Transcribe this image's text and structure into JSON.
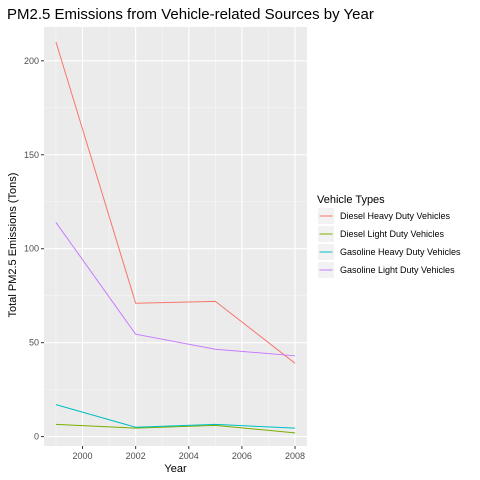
{
  "chart_data": {
    "type": "line",
    "title": "PM2.5 Emissions from Vehicle-related Sources by Year",
    "xlabel": "Year",
    "ylabel": "Total PM2.5 Emissions (Tons)",
    "x": [
      1999,
      2002,
      2005,
      2008
    ],
    "xlim": [
      1998.55,
      2008.45
    ],
    "ylim": [
      -5,
      218
    ],
    "x_ticks": [
      2000,
      2002,
      2004,
      2006,
      2008
    ],
    "y_ticks": [
      0,
      50,
      100,
      150,
      200
    ],
    "x_tick_labels": [
      "2000",
      "2002",
      "2004",
      "2006",
      "2008"
    ],
    "y_tick_labels": [
      "0",
      "50",
      "100",
      "150",
      "200"
    ],
    "grid": true,
    "background": "#ebebeb",
    "legend": {
      "title": "Vehicle Types",
      "position": "right"
    },
    "series": [
      {
        "name": "Diesel Heavy Duty Vehicles",
        "color": "#f8766d",
        "values": [
          210,
          71,
          72,
          39
        ]
      },
      {
        "name": "Diesel Light Duty Vehicles",
        "color": "#7cae00",
        "values": [
          6.5,
          4.5,
          6,
          2
        ]
      },
      {
        "name": "Gasoline Heavy Duty Vehicles",
        "color": "#00bfc4",
        "values": [
          17,
          5,
          6.5,
          4.5
        ]
      },
      {
        "name": "Gasoline Light Duty Vehicles",
        "color": "#c77cff",
        "values": [
          114,
          54.5,
          46.5,
          43
        ]
      }
    ]
  }
}
